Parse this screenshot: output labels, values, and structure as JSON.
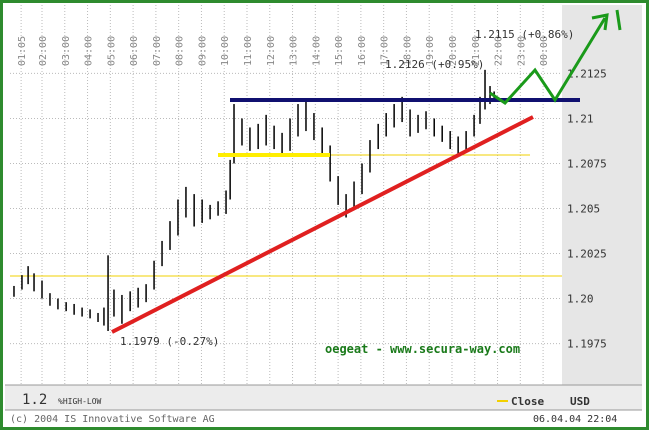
{
  "chart_data": {
    "type": "hilo",
    "x": [
      0.77,
      1.12,
      1.39,
      1.65,
      2.0,
      2.35,
      2.7,
      3.06,
      3.41,
      3.76,
      4.11,
      4.46,
      4.72,
      4.9,
      5.16,
      5.51,
      5.87,
      6.22,
      6.57,
      6.92,
      7.27,
      7.62,
      7.97,
      8.32,
      8.68,
      9.03,
      9.38,
      9.73,
      10.08,
      10.26,
      10.43,
      10.78,
      11.13,
      11.49,
      11.84,
      12.19,
      12.54,
      12.89,
      13.24,
      13.59,
      13.94,
      14.3,
      14.65,
      15.0,
      15.35,
      15.7,
      16.05,
      16.4,
      16.76,
      17.11,
      17.46,
      17.81,
      18.16,
      18.51,
      18.86,
      19.22,
      19.57,
      19.92,
      20.27,
      20.62,
      20.97,
      21.23,
      21.45,
      21.67,
      21.85
    ],
    "high": [
      1.2007,
      1.2013,
      1.2018,
      1.2014,
      1.201,
      1.2003,
      1.2,
      1.1998,
      1.1997,
      1.1995,
      1.1994,
      1.1992,
      1.1995,
      1.2024,
      1.2005,
      1.2002,
      1.2004,
      1.2006,
      1.2008,
      1.2021,
      1.2032,
      1.2043,
      1.2055,
      1.2062,
      1.2058,
      1.2055,
      1.2052,
      1.2054,
      1.206,
      1.2077,
      1.2108,
      1.21,
      1.2095,
      1.2097,
      1.2102,
      1.2096,
      1.2092,
      1.21,
      1.2108,
      1.211,
      1.2103,
      1.2095,
      1.2085,
      1.2068,
      1.2058,
      1.2065,
      1.2075,
      1.2088,
      1.2097,
      1.2103,
      1.2108,
      1.2112,
      1.2105,
      1.2102,
      1.2104,
      1.21,
      1.2096,
      1.2093,
      1.209,
      1.2093,
      1.2102,
      1.2112,
      1.2127,
      1.2118,
      1.2115
    ],
    "low": [
      1.2001,
      1.2005,
      1.2008,
      1.2004,
      1.2,
      1.1996,
      1.1994,
      1.1993,
      1.1991,
      1.199,
      1.1989,
      1.1987,
      1.1985,
      1.1982,
      1.199,
      1.1986,
      1.1993,
      1.1995,
      1.1998,
      1.2005,
      1.2018,
      1.2027,
      1.2035,
      1.2045,
      1.204,
      1.2042,
      1.2044,
      1.2046,
      1.2047,
      1.2055,
      1.2075,
      1.2085,
      1.2082,
      1.2083,
      1.2085,
      1.2083,
      1.208,
      1.2082,
      1.209,
      1.2093,
      1.2088,
      1.208,
      1.2065,
      1.2052,
      1.2045,
      1.205,
      1.2058,
      1.207,
      1.2083,
      1.209,
      1.2095,
      1.2098,
      1.209,
      1.2092,
      1.2094,
      1.209,
      1.2087,
      1.2083,
      1.208,
      1.2081,
      1.209,
      1.2097,
      1.2105,
      1.2108,
      1.211
    ],
    "color": "#000000",
    "xlim": [
      0.595,
      24.83
    ],
    "xticks": [
      {
        "value": 1.0833,
        "label": "01:05"
      },
      {
        "value": 2,
        "label": "02:00"
      },
      {
        "value": 3,
        "label": "03:00"
      },
      {
        "value": 4,
        "label": "04:00"
      },
      {
        "value": 5,
        "label": "05:00"
      },
      {
        "value": 6,
        "label": "06:00"
      },
      {
        "value": 7,
        "label": "07:00"
      },
      {
        "value": 8,
        "label": "08:00"
      },
      {
        "value": 9,
        "label": "09:00"
      },
      {
        "value": 10,
        "label": "10:00"
      },
      {
        "value": 11,
        "label": "11:00"
      },
      {
        "value": 12,
        "label": "12:00"
      },
      {
        "value": 13,
        "label": "13:00"
      },
      {
        "value": 14,
        "label": "14:00"
      },
      {
        "value": 15,
        "label": "15:00"
      },
      {
        "value": 16,
        "label": "16:00"
      },
      {
        "value": 17,
        "label": "17:00"
      },
      {
        "value": 18,
        "label": "18:00"
      },
      {
        "value": 19,
        "label": "19:00"
      },
      {
        "value": 20,
        "label": "20:00"
      },
      {
        "value": 21,
        "label": "21:00"
      },
      {
        "value": 22,
        "label": "22:00"
      },
      {
        "value": 23,
        "label": "23:00"
      },
      {
        "value": 24,
        "label": "00:00"
      }
    ],
    "ylim": [
      1.1952,
      1.2163
    ],
    "yticks": [
      1.1975,
      {
        "value": 1.2,
        "label": "1.20"
      },
      1.2025,
      1.205,
      1.2075,
      1.21,
      1.2125
    ],
    "grid": true,
    "annotations": [
      "1.2115 (+0.86%)",
      "1.2126 (+0.95%)",
      "1.1979 (-0.27%)",
      "oegeat - www.secura-way.com"
    ],
    "price_label": "1.2",
    "indicator_label": "%HIGH-LOW",
    "legend": {
      "name": "Close",
      "color": "#f2d000"
    },
    "currency": "USD",
    "copyright": "(c) 2004 IS Innovative Software AG",
    "timestamp": "06.04.04 22:04"
  }
}
